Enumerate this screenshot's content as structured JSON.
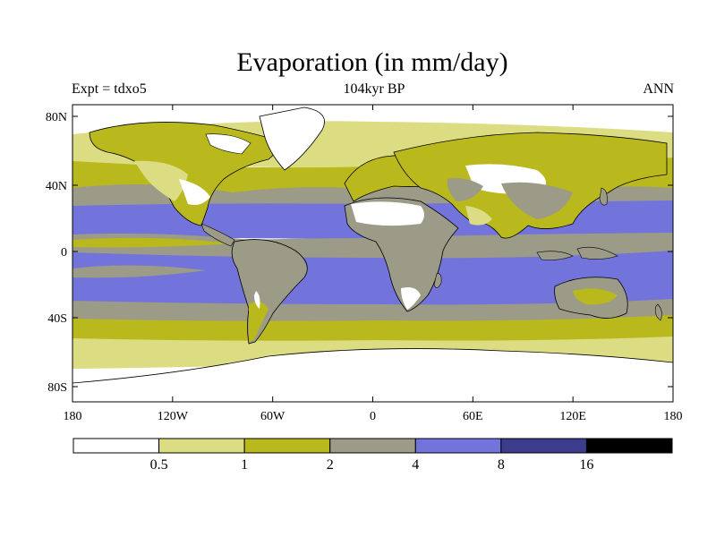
{
  "title": "Evaporation (in mm/day)",
  "experiment": "Expt = tdxo5",
  "period": "104kyr BP",
  "season": "ANN",
  "lat_ticks": [
    "80N",
    "40N",
    "0",
    "40S",
    "80S"
  ],
  "lon_ticks": [
    "180",
    "120W",
    "60W",
    "0",
    "60E",
    "120E",
    "180"
  ],
  "colorbar": {
    "colors": [
      "#ffffff",
      "#dcdc82",
      "#b9b91e",
      "#9b9b87",
      "#7373dc",
      "#3c3c8c",
      "#000000"
    ],
    "labels": [
      "0.5",
      "1",
      "2",
      "4",
      "8",
      "16"
    ]
  }
}
